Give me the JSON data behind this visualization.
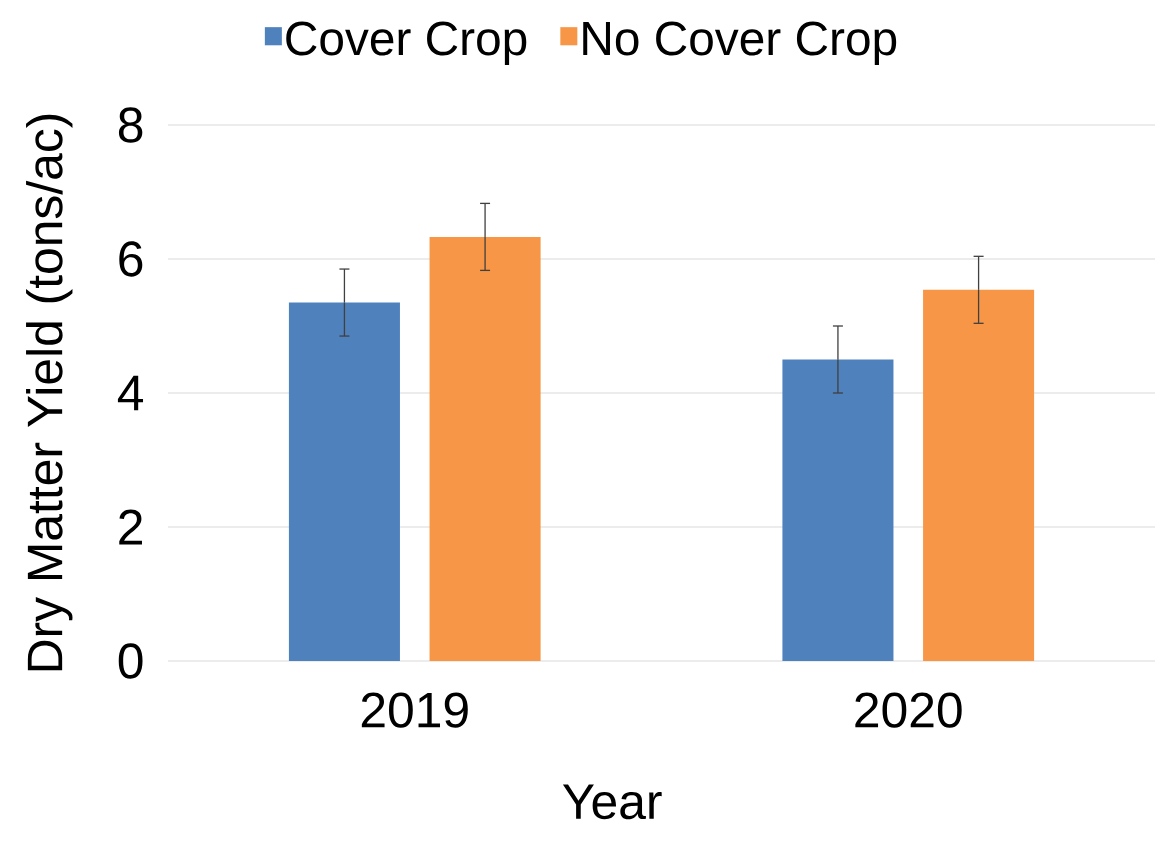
{
  "chart_data": {
    "type": "bar",
    "xlabel": "Year",
    "ylabel": "Dry Matter Yield (tons/ac)",
    "categories": [
      "2019",
      "2020"
    ],
    "series": [
      {
        "name": "Cover Crop",
        "color": "#4f81bd",
        "values": [
          5.35,
          4.5
        ],
        "errors": [
          0.5,
          0.5
        ]
      },
      {
        "name": "No Cover Crop",
        "color": "#f79646",
        "values": [
          6.33,
          5.54
        ],
        "errors": [
          0.5,
          0.5
        ]
      }
    ],
    "ylim": [
      0,
      8
    ],
    "yticks": [
      0,
      2,
      4,
      6,
      8
    ],
    "grid": "y",
    "legend": "top"
  }
}
